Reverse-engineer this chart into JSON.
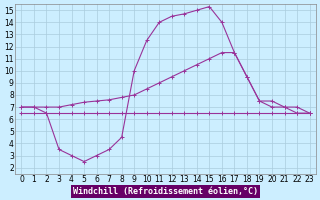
{
  "xlabel": "Windchill (Refroidissement éolien,°C)",
  "bg_color": "#cceeff",
  "grid_color": "#aaccdd",
  "line_color": "#993399",
  "xlim": [
    -0.5,
    23.5
  ],
  "ylim": [
    1.5,
    15.5
  ],
  "xticks": [
    0,
    1,
    2,
    3,
    4,
    5,
    6,
    7,
    8,
    9,
    10,
    11,
    12,
    13,
    14,
    15,
    16,
    17,
    18,
    19,
    20,
    21,
    22,
    23
  ],
  "yticks": [
    2,
    3,
    4,
    5,
    6,
    7,
    8,
    9,
    10,
    11,
    12,
    13,
    14,
    15
  ],
  "series1_x": [
    0,
    1,
    2,
    3,
    4,
    5,
    6,
    7,
    8,
    9,
    10,
    11,
    12,
    13,
    14,
    15,
    16,
    17,
    18,
    19,
    20,
    21,
    22,
    23
  ],
  "series1_y": [
    6.5,
    6.5,
    6.5,
    6.5,
    6.5,
    6.5,
    6.5,
    6.5,
    6.5,
    6.5,
    6.5,
    6.5,
    6.5,
    6.5,
    6.5,
    6.5,
    6.5,
    6.5,
    6.5,
    6.5,
    6.5,
    6.5,
    6.5,
    6.5
  ],
  "series2_x": [
    0,
    1,
    2,
    3,
    4,
    5,
    6,
    7,
    8,
    9,
    10,
    11,
    12,
    13,
    14,
    15,
    16,
    17,
    18,
    19,
    20,
    21,
    22,
    23
  ],
  "series2_y": [
    7.0,
    7.0,
    6.5,
    3.5,
    3.0,
    2.5,
    3.0,
    3.5,
    4.5,
    10.0,
    12.5,
    14.0,
    14.5,
    14.7,
    15.0,
    15.3,
    14.0,
    11.5,
    9.5,
    7.5,
    7.0,
    7.0,
    6.5,
    6.5
  ],
  "series3_x": [
    0,
    1,
    2,
    3,
    4,
    5,
    6,
    7,
    8,
    9,
    10,
    11,
    12,
    13,
    14,
    15,
    16,
    17,
    18,
    19,
    20,
    21,
    22,
    23
  ],
  "series3_y": [
    7.0,
    7.0,
    7.0,
    7.0,
    7.2,
    7.4,
    7.5,
    7.6,
    7.8,
    8.0,
    8.5,
    9.0,
    9.5,
    10.0,
    10.5,
    11.0,
    11.5,
    11.5,
    9.5,
    7.5,
    7.5,
    7.0,
    7.0,
    6.5
  ],
  "xlabel_bg": "#660066",
  "xlabel_fg": "#ffffff",
  "xlabel_fontsize": 6.0,
  "tick_fontsize": 5.5
}
